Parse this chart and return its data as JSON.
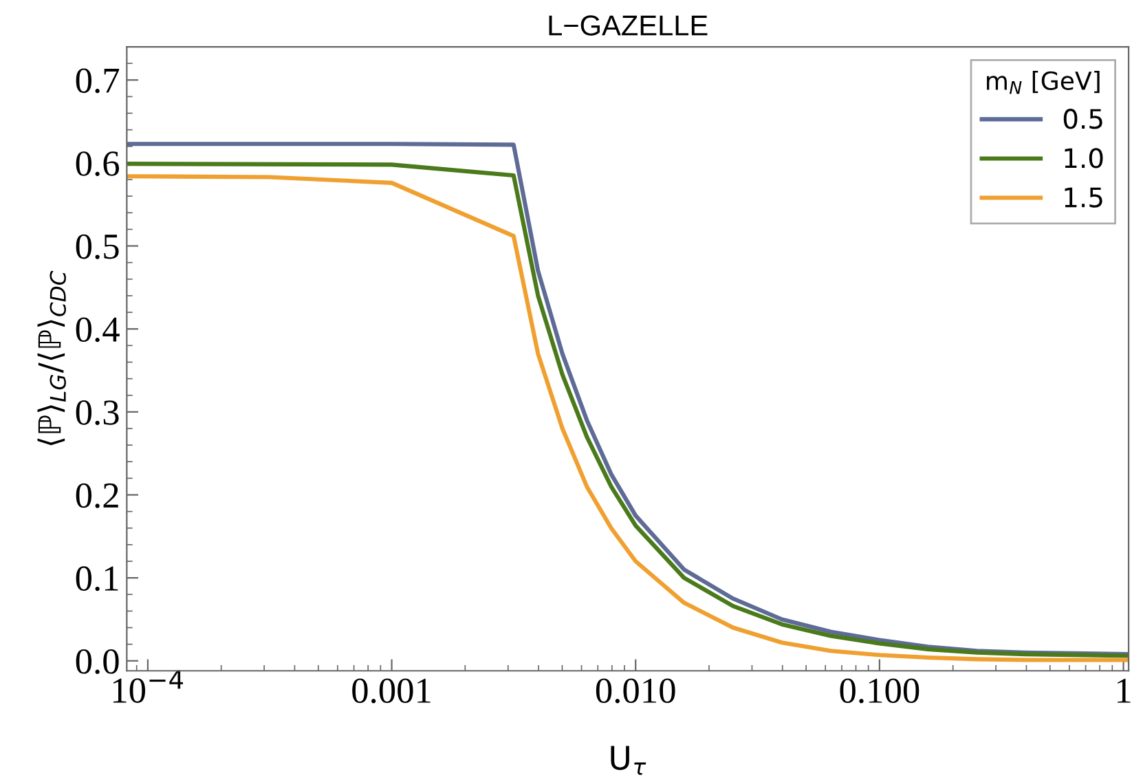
{
  "chart_data": {
    "type": "line",
    "title": "L−GAZELLE",
    "xlabel": "U$_{τ}$",
    "ylabel": "⟨ℙ⟩$_{LG}$/⟨ℙ⟩$_{CDC}$",
    "legend_title": "m$_{N}$ [GeV]",
    "log": "x",
    "xlim": [
      8.2e-05,
      1.05
    ],
    "xticks": [
      {
        "value": 0.0001,
        "label": "10$^{−4}$"
      },
      0.001,
      {
        "value": 0.01,
        "label": "0.010"
      },
      {
        "value": 0.1,
        "label": "0.100"
      },
      1
    ],
    "ylim": [
      -0.012,
      0.74
    ],
    "yticks": [
      {
        "value": 0,
        "label": "0.0"
      },
      0.1,
      0.2,
      0.3,
      0.4,
      0.5,
      0.6,
      0.7
    ],
    "grid": false,
    "legend": "top right",
    "line_style": "solid",
    "marker": "none",
    "series": [
      {
        "name": "0.5",
        "color": "#5e6b96",
        "x": [
          8.2e-05,
          0.001,
          0.00316,
          0.00398,
          0.00501,
          0.00631,
          0.00794,
          0.01,
          0.0158,
          0.0251,
          0.0398,
          0.0631,
          0.1,
          0.158,
          0.251,
          0.398,
          0.631,
          1.05
        ],
        "values": [
          0.623,
          0.623,
          0.622,
          0.47,
          0.37,
          0.29,
          0.225,
          0.175,
          0.11,
          0.075,
          0.05,
          0.035,
          0.025,
          0.017,
          0.012,
          0.01,
          0.009,
          0.008
        ]
      },
      {
        "name": "1.0",
        "color": "#4a7a1a",
        "x": [
          8.2e-05,
          0.001,
          0.00316,
          0.00398,
          0.00501,
          0.00631,
          0.00794,
          0.01,
          0.0158,
          0.0251,
          0.0398,
          0.0631,
          0.1,
          0.158,
          0.251,
          0.398,
          0.631,
          1.05
        ],
        "values": [
          0.599,
          0.598,
          0.585,
          0.44,
          0.345,
          0.27,
          0.21,
          0.163,
          0.1,
          0.066,
          0.044,
          0.03,
          0.021,
          0.014,
          0.01,
          0.008,
          0.007,
          0.006
        ]
      },
      {
        "name": "1.5",
        "color": "#f0a030",
        "x": [
          8.2e-05,
          0.000316,
          0.001,
          0.00316,
          0.00398,
          0.00501,
          0.00631,
          0.00794,
          0.01,
          0.0158,
          0.0251,
          0.0398,
          0.0631,
          0.1,
          0.158,
          0.251,
          0.398,
          0.631,
          1.05
        ],
        "values": [
          0.584,
          0.583,
          0.576,
          0.512,
          0.37,
          0.28,
          0.21,
          0.16,
          0.12,
          0.07,
          0.04,
          0.022,
          0.012,
          0.007,
          0.004,
          0.002,
          0.001,
          0.001,
          0.001
        ]
      }
    ]
  }
}
